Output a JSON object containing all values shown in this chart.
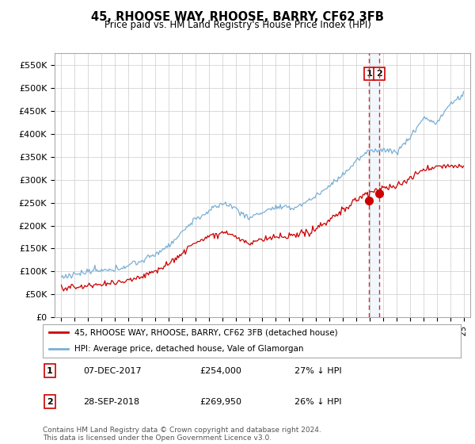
{
  "title": "45, RHOOSE WAY, RHOOSE, BARRY, CF62 3FB",
  "subtitle": "Price paid vs. HM Land Registry's House Price Index (HPI)",
  "hpi_color": "#7bafd4",
  "price_color": "#cc0000",
  "vline_color": "#cc3333",
  "annotation1": {
    "label": "1",
    "date": "07-DEC-2017",
    "price": 254000,
    "note": "27% ↓ HPI"
  },
  "annotation2": {
    "label": "2",
    "date": "28-SEP-2018",
    "price": 269950,
    "note": "26% ↓ HPI"
  },
  "legend_entry1": "45, RHOOSE WAY, RHOOSE, BARRY, CF62 3FB (detached house)",
  "legend_entry2": "HPI: Average price, detached house, Vale of Glamorgan",
  "footer": "Contains HM Land Registry data © Crown copyright and database right 2024.\nThis data is licensed under the Open Government Licence v3.0.",
  "ylim": [
    0,
    575000
  ],
  "yticks": [
    0,
    50000,
    100000,
    150000,
    200000,
    250000,
    300000,
    350000,
    400000,
    450000,
    500000,
    550000
  ],
  "bg_color": "#ffffff",
  "grid_color": "#cccccc",
  "mark1_year": 2017.958,
  "mark1_price": 254000,
  "mark2_year": 2018.708,
  "mark2_price": 269950,
  "hpi_at_mark1": 344000,
  "hpi_at_mark2": 365000
}
